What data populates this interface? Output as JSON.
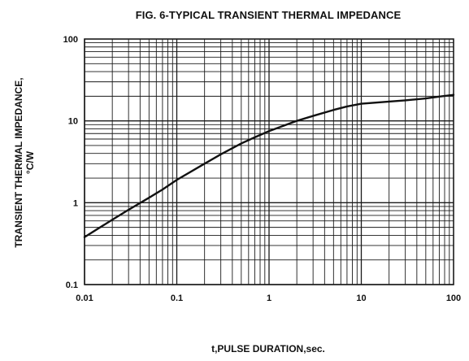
{
  "chart_data": {
    "type": "line",
    "title": "FIG. 6-TYPICAL TRANSIENT THERMAL IMPEDANCE",
    "xlabel": "t,PULSE DURATION,sec.",
    "ylabel_line1": "TRANSIENT THERMAL IMPEDANCE,",
    "ylabel_line2": "°C/W",
    "xscale": "log",
    "yscale": "log",
    "xlim": [
      0.01,
      100
    ],
    "ylim": [
      0.1,
      100
    ],
    "grid": true,
    "x_ticks": [
      {
        "value": 0.01,
        "label": "0.01"
      },
      {
        "value": 0.1,
        "label": "0.1"
      },
      {
        "value": 1,
        "label": "1"
      },
      {
        "value": 10,
        "label": "10"
      },
      {
        "value": 100,
        "label": "100"
      }
    ],
    "y_ticks": [
      {
        "value": 0.1,
        "label": "0.1"
      },
      {
        "value": 1,
        "label": "1"
      },
      {
        "value": 10,
        "label": "10"
      },
      {
        "value": 100,
        "label": "100"
      }
    ],
    "series": [
      {
        "x": [
          0.01,
          0.02,
          0.03,
          0.05,
          0.07,
          0.1,
          0.2,
          0.3,
          0.5,
          0.7,
          1,
          2,
          3,
          5,
          7,
          10,
          20,
          30,
          50,
          70,
          100
        ],
        "y": [
          0.38,
          0.62,
          0.82,
          1.15,
          1.45,
          1.9,
          3.0,
          3.9,
          5.3,
          6.3,
          7.5,
          10.0,
          11.5,
          13.6,
          15.0,
          16.2,
          17.2,
          17.8,
          18.8,
          19.8,
          20.8
        ]
      }
    ],
    "colors": {
      "line": "#111111",
      "grid": "#1a1a1a",
      "background": "#ffffff"
    }
  }
}
